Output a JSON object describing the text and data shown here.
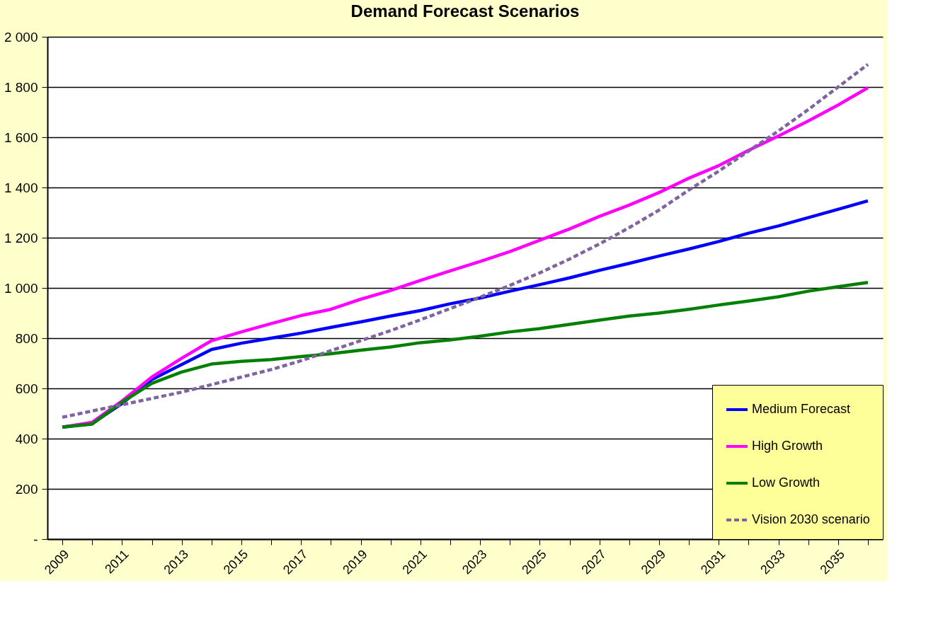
{
  "chart_data": {
    "type": "line",
    "title": "Demand Forecast Scenarios",
    "categories": [
      "2009",
      null,
      "2011",
      null,
      "2013",
      null,
      "2015",
      null,
      "2017",
      null,
      "2019",
      null,
      "2021",
      null,
      "2023",
      null,
      "2025",
      null,
      "2027",
      null,
      "2029",
      null,
      "2031",
      null,
      "2033",
      null,
      "2035",
      null
    ],
    "ylim": [
      0,
      2000
    ],
    "yticks": [
      {
        "value": 0,
        "label": "-"
      },
      200,
      400,
      600,
      800,
      {
        "value": 1000,
        "label": "1 000"
      },
      {
        "value": 1200,
        "label": "1 200"
      },
      {
        "value": 1400,
        "label": "1 400"
      },
      {
        "value": 1600,
        "label": "1 600"
      },
      {
        "value": 1800,
        "label": "1 800"
      },
      {
        "value": 2000,
        "label": "2 000"
      }
    ],
    "grid": "y",
    "legend": "bottom right",
    "marker": "none",
    "series": [
      {
        "name": "Medium Forecast",
        "color": "#0000ff",
        "line_style": "solid",
        "values": [
          446,
          460,
          540,
          635,
          695,
          755,
          780,
          800,
          820,
          843,
          865,
          888,
          910,
          937,
          960,
          987,
          1013,
          1040,
          1070,
          1098,
          1127,
          1155,
          1185,
          1218,
          1247,
          1280,
          1313,
          1347
        ]
      },
      {
        "name": "High Growth",
        "color": "#ff00ff",
        "line_style": "solid",
        "values": [
          446,
          465,
          550,
          645,
          720,
          790,
          825,
          858,
          890,
          915,
          955,
          990,
          1030,
          1068,
          1105,
          1145,
          1190,
          1235,
          1285,
          1330,
          1380,
          1437,
          1487,
          1548,
          1605,
          1665,
          1728,
          1797
        ]
      },
      {
        "name": "Low Growth",
        "color": "#008000",
        "line_style": "solid",
        "values": [
          446,
          458,
          545,
          620,
          665,
          697,
          708,
          715,
          727,
          738,
          752,
          765,
          782,
          793,
          808,
          825,
          838,
          855,
          872,
          888,
          900,
          915,
          932,
          948,
          965,
          987,
          1005,
          1022
        ]
      },
      {
        "name": "Vision 2030 scenario",
        "color": "#8064a2",
        "line_style": "dashed",
        "values": [
          485,
          510,
          535,
          560,
          585,
          615,
          645,
          675,
          710,
          750,
          790,
          830,
          873,
          918,
          963,
          1010,
          1060,
          1115,
          1175,
          1240,
          1310,
          1390,
          1465,
          1545,
          1625,
          1710,
          1800,
          1890
        ]
      }
    ]
  }
}
